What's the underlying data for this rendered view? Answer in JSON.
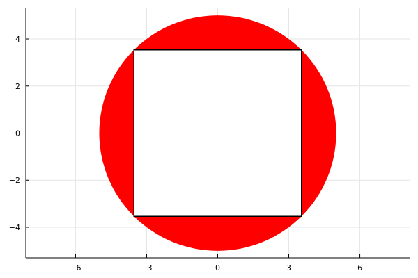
{
  "chart_data": {
    "type": "scatter",
    "title": "",
    "xlabel": "",
    "ylabel": "",
    "xlim": [
      -8.1,
      8.1
    ],
    "ylim": [
      -5.3,
      5.3
    ],
    "grid": true,
    "legend": "none",
    "x_ticks": [
      {
        "value": -6,
        "label": "−6"
      },
      {
        "value": -3,
        "label": "−3"
      },
      {
        "value": 0,
        "label": "0"
      },
      {
        "value": 3,
        "label": "3"
      },
      {
        "value": 6,
        "label": "6"
      }
    ],
    "y_ticks": [
      {
        "value": -4,
        "label": "−4"
      },
      {
        "value": -2,
        "label": "−2"
      },
      {
        "value": 0,
        "label": "0"
      },
      {
        "value": 2,
        "label": "2"
      },
      {
        "value": 4,
        "label": "4"
      }
    ],
    "shapes": [
      {
        "kind": "circle",
        "center": [
          0,
          0
        ],
        "radius": 5,
        "fill": "#ff0000",
        "stroke": "none"
      },
      {
        "kind": "rectangle",
        "x_range": [
          -3.5355,
          3.5355
        ],
        "y_range": [
          -3.5355,
          3.5355
        ],
        "fill": "#ffffff",
        "stroke": "#000000"
      }
    ]
  }
}
